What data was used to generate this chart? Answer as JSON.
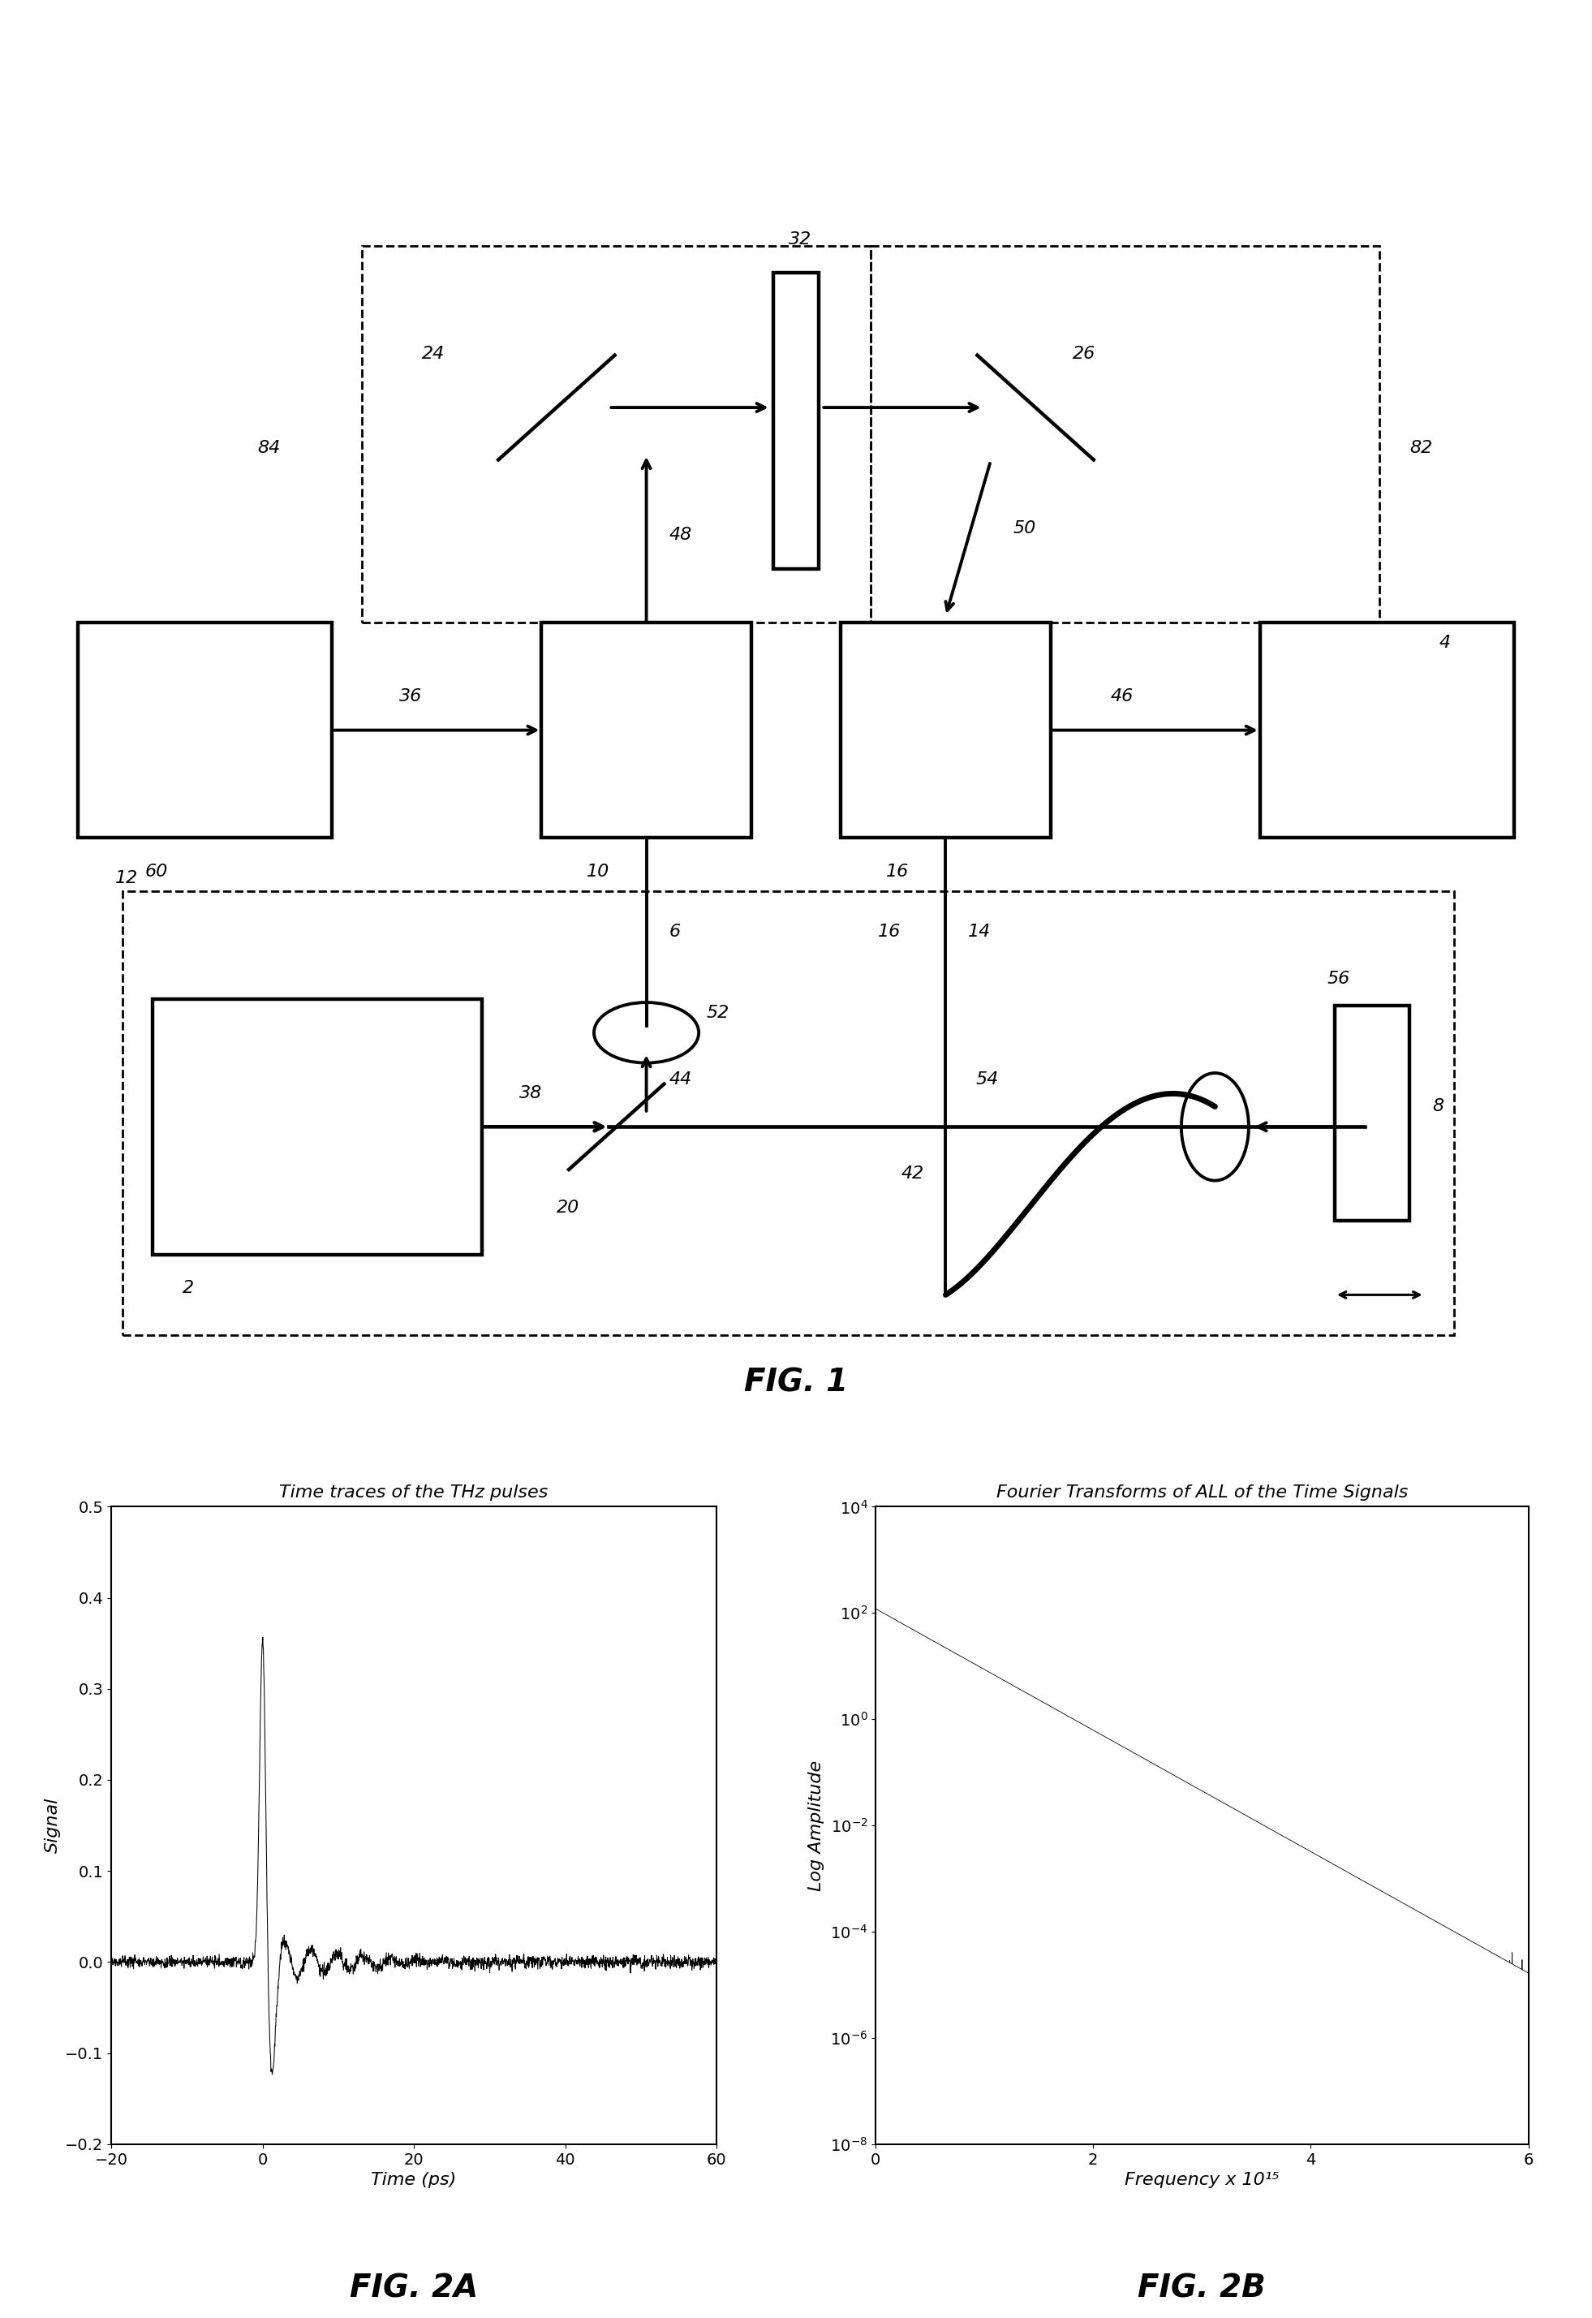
{
  "fig_width": 19.62,
  "fig_height": 28.56,
  "bg_color": "#ffffff",
  "fig1_label": "FIG. 1",
  "fig2a_title": "Time traces of the THz pulses",
  "fig2b_title": "Fourier Transforms of ALL of the Time Signals",
  "fig2a_xlabel": "Time (ps)",
  "fig2a_ylabel": "Signal",
  "fig2b_xlabel": "Frequency x 10¹⁵",
  "fig2b_ylabel": "Log Amplitude",
  "fig2a_xlim": [
    -20,
    60
  ],
  "fig2a_ylim": [
    -0.2,
    0.5
  ],
  "fig2a_xticks": [
    -20,
    0,
    20,
    40,
    60
  ],
  "fig2a_yticks": [
    -0.2,
    -0.1,
    0.0,
    0.1,
    0.2,
    0.3,
    0.4,
    0.5
  ],
  "fig2b_xlim": [
    0,
    6
  ],
  "fig2b_xticks": [
    0,
    2,
    4,
    6
  ],
  "fig2a_label": "FIG. 2A",
  "fig2b_label": "FIG. 2B",
  "axis_fontsize": 16,
  "tick_fontsize": 14,
  "title_fontsize": 16,
  "fig_label_fontsize": 28,
  "diag_num_fontsize": 16
}
